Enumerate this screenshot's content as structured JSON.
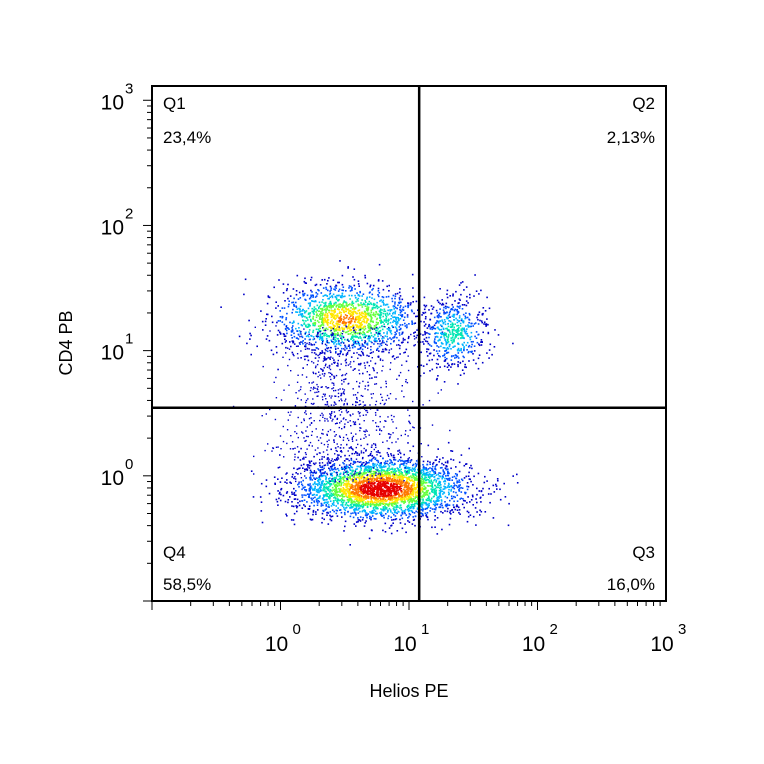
{
  "chart_data": {
    "type": "scatter",
    "subtype": "flow-cytometry density dot plot",
    "title": "",
    "xlabel": "Helios PE",
    "ylabel": "CD4 PB",
    "x_scale": "log",
    "y_scale": "log",
    "xlim": [
      0.1,
      1000
    ],
    "ylim": [
      0.1,
      1300
    ],
    "x_ticks": [
      {
        "value": 1,
        "base": "10",
        "exp": "0"
      },
      {
        "value": 10,
        "base": "10",
        "exp": "1"
      },
      {
        "value": 100,
        "base": "10",
        "exp": "2"
      },
      {
        "value": 1000,
        "base": "10",
        "exp": "3"
      }
    ],
    "y_ticks": [
      {
        "value": 1,
        "base": "10",
        "exp": "0"
      },
      {
        "value": 10,
        "base": "10",
        "exp": "1"
      },
      {
        "value": 100,
        "base": "10",
        "exp": "2"
      },
      {
        "value": 1000,
        "base": "10",
        "exp": "3"
      }
    ],
    "gates": {
      "x": 12,
      "y": 3.5
    },
    "quadrants": [
      {
        "id": "Q1",
        "label": "Q1",
        "percent": "23,4%",
        "position": "top-left"
      },
      {
        "id": "Q2",
        "label": "Q2",
        "percent": "2,13%",
        "position": "top-right"
      },
      {
        "id": "Q3",
        "label": "Q3",
        "percent": "16,0%",
        "position": "bottom-right"
      },
      {
        "id": "Q4",
        "label": "Q4",
        "percent": "58,5%",
        "position": "bottom-left"
      }
    ],
    "populations": [
      {
        "name": "CD4-high Helios-low",
        "x_center": 3.2,
        "y_center": 18,
        "spread_x_decades": 0.28,
        "spread_y_decades": 0.14
      },
      {
        "name": "CD4-high Helios+",
        "x_center": 22,
        "y_center": 14,
        "spread_x_decades": 0.13,
        "spread_y_decades": 0.14
      },
      {
        "name": "CD4-low main",
        "x_center": 6,
        "y_center": 0.8,
        "spread_x_decades": 0.33,
        "spread_y_decades": 0.12
      }
    ],
    "colormap": [
      "#0000c8",
      "#0050ff",
      "#00b4ff",
      "#00e6b4",
      "#64ff3c",
      "#ffe600",
      "#ff7800",
      "#e60000"
    ],
    "grid": false,
    "legend": "none"
  }
}
